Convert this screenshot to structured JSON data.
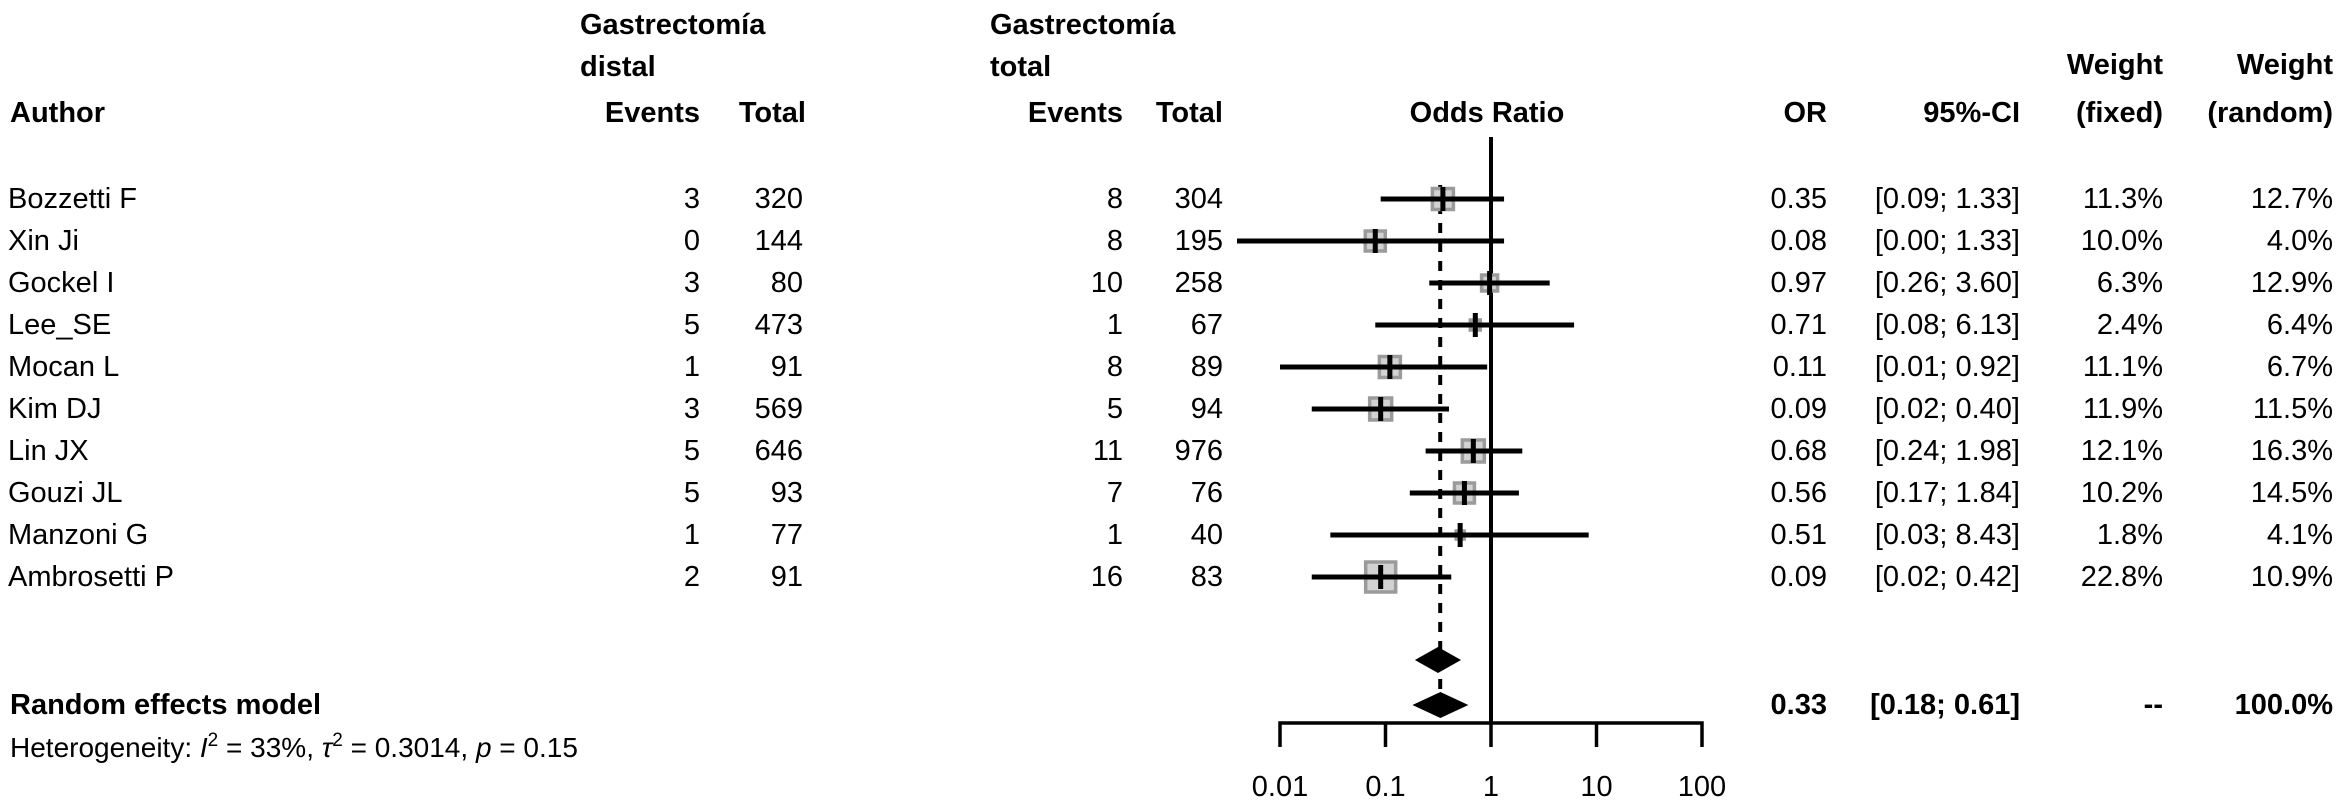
{
  "header": {
    "author": "Author",
    "group_distal": {
      "line1": "Gastrectomía",
      "line2": "distal",
      "events": "Events",
      "total": "Total"
    },
    "group_total": {
      "line1": "Gastrectomía",
      "line2": "total",
      "events": "Events",
      "total": "Total"
    },
    "odds_ratio": "Odds Ratio",
    "or": "OR",
    "ci": "95%-CI",
    "weight_fixed_top": "Weight",
    "weight_random_top": "Weight",
    "fixed": "(fixed)",
    "random": "(random)"
  },
  "summary": {
    "label": "Random effects model",
    "or_label": "0.33",
    "ci_label": "[0.18; 0.61]",
    "weight_fixed_label": "--",
    "weight_random_label": "100.0%"
  },
  "heterogeneity_segments": [
    {
      "text": "Heterogeneity: "
    },
    {
      "text": "I",
      "italic": true
    },
    {
      "text": "2",
      "sup": true
    },
    {
      "text": " = 33%, "
    },
    {
      "text": "τ",
      "italic": true
    },
    {
      "text": "2",
      "sup": true
    },
    {
      "text": " = 0.3014, "
    },
    {
      "text": "p",
      "italic": true
    },
    {
      "text": " = 0.15"
    }
  ],
  "colors": {
    "ink": "#000000",
    "square_fill": "#d2d2d2",
    "square_border": "#9b9b9b"
  },
  "chart_data": {
    "type": "scatter",
    "subtype": "forest_plot",
    "x_scale": "log10",
    "x_range": [
      0.01,
      100
    ],
    "x_ticks": [
      0.01,
      0.1,
      1,
      10,
      100
    ],
    "x_tick_labels": [
      "0.01",
      "0.1",
      "1",
      "10",
      "100"
    ],
    "reference_line_x": 1,
    "dashed_line_x": 0.33,
    "studies": [
      {
        "author": "Bozzetti F",
        "distal_events": 3,
        "distal_total": 320,
        "total_events": 8,
        "total_total": 304,
        "or": 0.35,
        "ci_low": 0.09,
        "ci_high": 1.33,
        "or_label": "0.35",
        "ci_label": "[0.09; 1.33]",
        "weight_fixed_pct": 11.3,
        "weight_random_pct": 12.7,
        "wf_label": "11.3%",
        "wr_label": "12.7%"
      },
      {
        "author": "Xin Ji",
        "distal_events": 0,
        "distal_total": 144,
        "total_events": 8,
        "total_total": 195,
        "or": 0.08,
        "ci_low": 0.0,
        "ci_high": 1.33,
        "or_label": "0.08",
        "ci_label": "[0.00; 1.33]",
        "weight_fixed_pct": 10.0,
        "weight_random_pct": 4.0,
        "wf_label": "10.0%",
        "wr_label": "4.0%"
      },
      {
        "author": "Gockel I",
        "distal_events": 3,
        "distal_total": 80,
        "total_events": 10,
        "total_total": 258,
        "or": 0.97,
        "ci_low": 0.26,
        "ci_high": 3.6,
        "or_label": "0.97",
        "ci_label": "[0.26; 3.60]",
        "weight_fixed_pct": 6.3,
        "weight_random_pct": 12.9,
        "wf_label": "6.3%",
        "wr_label": "12.9%"
      },
      {
        "author": "Lee_SE",
        "distal_events": 5,
        "distal_total": 473,
        "total_events": 1,
        "total_total": 67,
        "or": 0.71,
        "ci_low": 0.08,
        "ci_high": 6.13,
        "or_label": "0.71",
        "ci_label": "[0.08; 6.13]",
        "weight_fixed_pct": 2.4,
        "weight_random_pct": 6.4,
        "wf_label": "2.4%",
        "wr_label": "6.4%"
      },
      {
        "author": "Mocan L",
        "distal_events": 1,
        "distal_total": 91,
        "total_events": 8,
        "total_total": 89,
        "or": 0.11,
        "ci_low": 0.01,
        "ci_high": 0.92,
        "or_label": "0.11",
        "ci_label": "[0.01; 0.92]",
        "weight_fixed_pct": 11.1,
        "weight_random_pct": 6.7,
        "wf_label": "11.1%",
        "wr_label": "6.7%"
      },
      {
        "author": "Kim DJ",
        "distal_events": 3,
        "distal_total": 569,
        "total_events": 5,
        "total_total": 94,
        "or": 0.09,
        "ci_low": 0.02,
        "ci_high": 0.4,
        "or_label": "0.09",
        "ci_label": "[0.02; 0.40]",
        "weight_fixed_pct": 11.9,
        "weight_random_pct": 11.5,
        "wf_label": "11.9%",
        "wr_label": "11.5%"
      },
      {
        "author": "Lin JX",
        "distal_events": 5,
        "distal_total": 646,
        "total_events": 11,
        "total_total": 976,
        "or": 0.68,
        "ci_low": 0.24,
        "ci_high": 1.98,
        "or_label": "0.68",
        "ci_label": "[0.24; 1.98]",
        "weight_fixed_pct": 12.1,
        "weight_random_pct": 16.3,
        "wf_label": "12.1%",
        "wr_label": "16.3%"
      },
      {
        "author": "Gouzi JL",
        "distal_events": 5,
        "distal_total": 93,
        "total_events": 7,
        "total_total": 76,
        "or": 0.56,
        "ci_low": 0.17,
        "ci_high": 1.84,
        "or_label": "0.56",
        "ci_label": "[0.17; 1.84]",
        "weight_fixed_pct": 10.2,
        "weight_random_pct": 14.5,
        "wf_label": "10.2%",
        "wr_label": "14.5%"
      },
      {
        "author": "Manzoni G",
        "distal_events": 1,
        "distal_total": 77,
        "total_events": 1,
        "total_total": 40,
        "or": 0.51,
        "ci_low": 0.03,
        "ci_high": 8.43,
        "or_label": "0.51",
        "ci_label": "[0.03; 8.43]",
        "weight_fixed_pct": 1.8,
        "weight_random_pct": 4.1,
        "wf_label": "1.8%",
        "wr_label": "4.1%"
      },
      {
        "author": "Ambrosetti P",
        "distal_events": 2,
        "distal_total": 91,
        "total_events": 16,
        "total_total": 83,
        "or": 0.09,
        "ci_low": 0.02,
        "ci_high": 0.42,
        "or_label": "0.09",
        "ci_label": "[0.02; 0.42]",
        "weight_fixed_pct": 22.8,
        "weight_random_pct": 10.9,
        "wf_label": "22.8%",
        "wr_label": "10.9%"
      }
    ],
    "pooled": {
      "random": {
        "label": "Random effects model",
        "or": 0.33,
        "ci_low": 0.18,
        "ci_high": 0.61,
        "weight_random_pct": 100.0
      },
      "fixed_diamond_unlabeled": {
        "or": 0.31,
        "ci_low": 0.19,
        "ci_high": 0.52
      }
    },
    "heterogeneity": {
      "I2": "33%",
      "tau2": "0.3014",
      "p": "0.15"
    },
    "legend_position": "none",
    "grid": false
  }
}
